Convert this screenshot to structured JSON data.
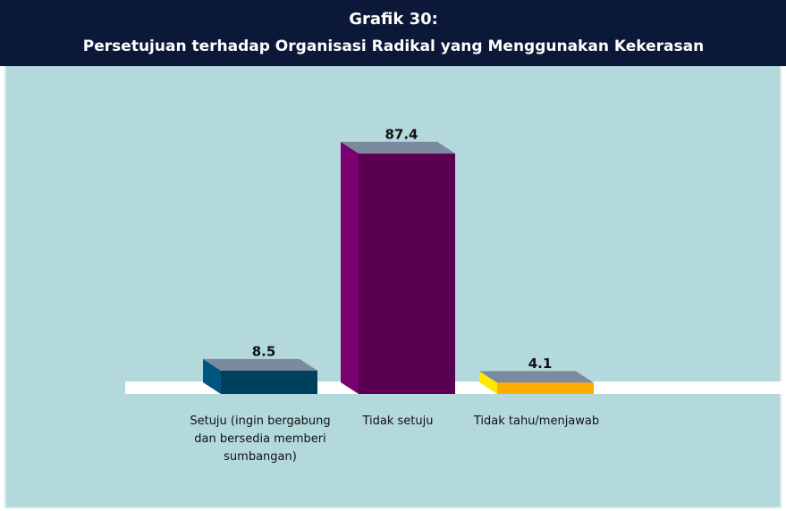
{
  "chart_data": {
    "type": "bar3d",
    "title": "Grafik 30:",
    "subtitle": "Persetujuan terhadap Organisasi Radikal yang Menggunakan Kekerasan",
    "categories": [
      "Setuju (ingin  bergabung dan bersedia memberi sumbangan)",
      "Tidak setuju",
      "Tidak tahu/menjawab"
    ],
    "values": [
      8.5,
      87.4,
      4.1
    ],
    "colors": [
      "#00405f",
      "#5a0052",
      "#ffab00"
    ],
    "ylim": [
      0,
      100
    ]
  }
}
